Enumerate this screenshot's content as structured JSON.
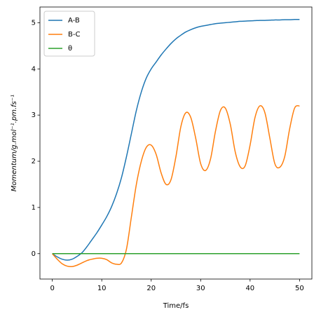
{
  "chart_data": {
    "type": "line",
    "xlabel": "Time/fs",
    "ylabel": "Momentum/g.mol⁻¹.pm.fs⁻¹",
    "x": [
      0,
      1,
      2,
      3,
      4,
      5,
      6,
      7,
      8,
      9,
      10,
      11,
      12,
      13,
      14,
      15,
      16,
      17,
      18,
      19,
      20,
      21,
      22,
      23,
      24,
      25,
      26,
      27,
      28,
      29,
      30,
      31,
      32,
      33,
      34,
      35,
      36,
      37,
      38,
      39,
      40,
      41,
      42,
      43,
      44,
      45,
      46,
      47,
      48,
      49,
      50
    ],
    "series": [
      {
        "name": "A-B",
        "color": "#1f77b4",
        "values": [
          0,
          -0.07,
          -0.12,
          -0.14,
          -0.12,
          -0.06,
          0.02,
          0.15,
          0.3,
          0.45,
          0.62,
          0.8,
          1.02,
          1.3,
          1.65,
          2.1,
          2.6,
          3.1,
          3.5,
          3.8,
          4.0,
          4.15,
          4.3,
          4.43,
          4.55,
          4.65,
          4.73,
          4.8,
          4.85,
          4.89,
          4.92,
          4.94,
          4.96,
          4.98,
          4.99,
          5.0,
          5.01,
          5.02,
          5.03,
          5.035,
          5.04,
          5.045,
          5.05,
          5.05,
          5.055,
          5.06,
          5.06,
          5.065,
          5.065,
          5.07,
          5.07
        ]
      },
      {
        "name": "B-C",
        "color": "#ff7f0e",
        "values": [
          0,
          -0.12,
          -0.22,
          -0.27,
          -0.28,
          -0.25,
          -0.2,
          -0.15,
          -0.12,
          -0.1,
          -0.1,
          -0.13,
          -0.2,
          -0.23,
          -0.2,
          0.1,
          0.8,
          1.5,
          2.0,
          2.3,
          2.35,
          2.15,
          1.75,
          1.5,
          1.6,
          2.1,
          2.75,
          3.05,
          2.95,
          2.5,
          1.95,
          1.8,
          2.05,
          2.65,
          3.1,
          3.15,
          2.8,
          2.2,
          1.88,
          1.9,
          2.35,
          2.95,
          3.2,
          3.05,
          2.5,
          1.95,
          1.87,
          2.1,
          2.7,
          3.15,
          3.2
        ]
      },
      {
        "name": "θ",
        "color": "#2ca02c",
        "values": [
          0,
          0,
          0,
          0,
          0,
          0,
          0,
          0,
          0,
          0,
          0,
          0,
          0,
          0,
          0,
          0,
          0,
          0,
          0,
          0,
          0,
          0,
          0,
          0,
          0,
          0,
          0,
          0,
          0,
          0,
          0,
          0,
          0,
          0,
          0,
          0,
          0,
          0,
          0,
          0,
          0,
          0,
          0,
          0,
          0,
          0,
          0,
          0,
          0,
          0,
          0
        ]
      }
    ],
    "xlim": [
      -2.5,
      52.5
    ],
    "ylim": [
      -0.55,
      5.34
    ],
    "xticks": [
      0,
      10,
      20,
      30,
      40,
      50
    ],
    "yticks": [
      0,
      1,
      2,
      3,
      4,
      5
    ],
    "legend": "upper left"
  }
}
